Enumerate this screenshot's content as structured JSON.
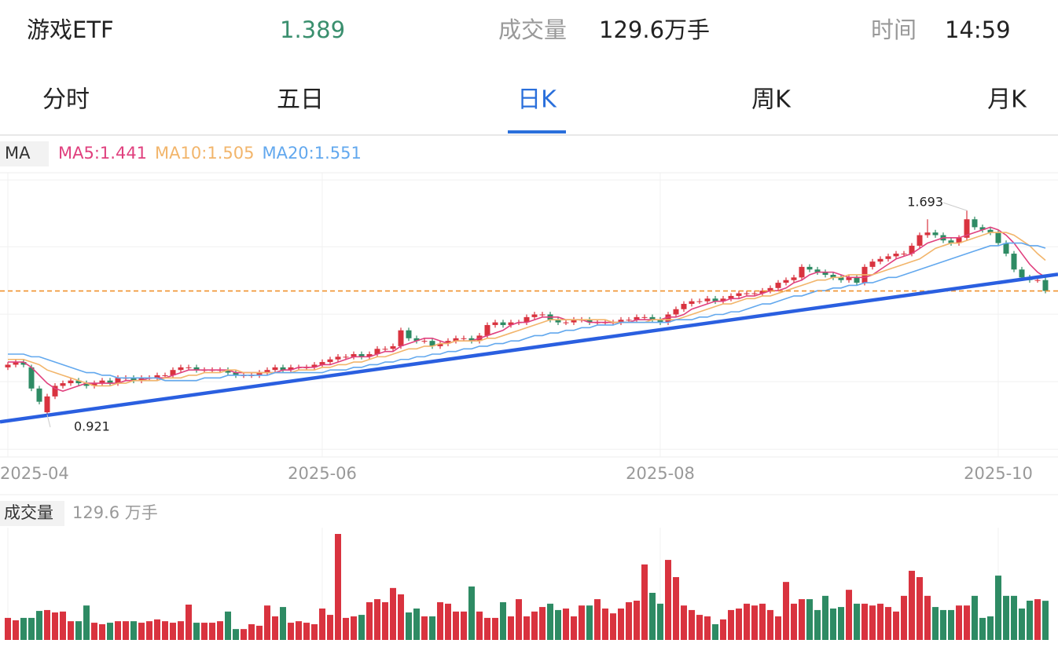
{
  "header": {
    "name": "游戏ETF",
    "price": "1.389",
    "volume_label": "成交量",
    "volume": "129.6万手",
    "time_label": "时间",
    "time": "14:59"
  },
  "tabs": [
    "分时",
    "五日",
    "日K",
    "周K",
    "月K"
  ],
  "selected_tab": 2,
  "chart_data": {
    "type": "candlestick",
    "categories": [
      "2025-04",
      null,
      null,
      null,
      null,
      null,
      null,
      null,
      null,
      null,
      null,
      null,
      null,
      null,
      null,
      null,
      null,
      null,
      null,
      null,
      null,
      null,
      null,
      null,
      null,
      null,
      null,
      null,
      null,
      null,
      null,
      null,
      null,
      null,
      null,
      null,
      null,
      null,
      null,
      null,
      "2025-06",
      null,
      null,
      null,
      null,
      null,
      null,
      null,
      null,
      null,
      null,
      null,
      null,
      null,
      null,
      null,
      null,
      null,
      null,
      null,
      null,
      null,
      null,
      null,
      null,
      null,
      null,
      null,
      null,
      null,
      null,
      null,
      null,
      null,
      null,
      null,
      null,
      null,
      null,
      null,
      null,
      null,
      null,
      "2025-08",
      null,
      null,
      null,
      null,
      null,
      null,
      null,
      null,
      null,
      null,
      null,
      null,
      null,
      null,
      null,
      null,
      null,
      null,
      null,
      null,
      null,
      null,
      null,
      null,
      null,
      null,
      null,
      null,
      null,
      null,
      null,
      null,
      null,
      null,
      null,
      null,
      null,
      null,
      null,
      null,
      null,
      null,
      "2025-10",
      null,
      null,
      null,
      null,
      null,
      null
    ],
    "open": [
      1.1,
      1.11,
      1.12,
      1.1,
      1.02,
      0.93,
      0.99,
      1.03,
      1.04,
      1.05,
      1.04,
      1.03,
      1.04,
      1.05,
      1.04,
      1.06,
      1.06,
      1.05,
      1.06,
      1.06,
      1.07,
      1.07,
      1.09,
      1.1,
      1.1,
      1.09,
      1.09,
      1.09,
      1.09,
      1.08,
      1.07,
      1.07,
      1.07,
      1.08,
      1.09,
      1.1,
      1.09,
      1.1,
      1.1,
      1.1,
      1.11,
      1.12,
      1.13,
      1.14,
      1.14,
      1.15,
      1.14,
      1.15,
      1.17,
      1.17,
      1.18,
      1.24,
      1.21,
      1.2,
      1.2,
      1.18,
      1.19,
      1.2,
      1.21,
      1.21,
      1.2,
      1.22,
      1.26,
      1.27,
      1.26,
      1.27,
      1.27,
      1.29,
      1.3,
      1.3,
      1.28,
      1.27,
      1.27,
      1.28,
      1.28,
      1.27,
      1.27,
      1.27,
      1.27,
      1.28,
      1.28,
      1.29,
      1.29,
      1.28,
      1.27,
      1.3,
      1.32,
      1.34,
      1.35,
      1.35,
      1.36,
      1.35,
      1.36,
      1.37,
      1.38,
      1.38,
      1.38,
      1.39,
      1.4,
      1.42,
      1.43,
      1.44,
      1.48,
      1.47,
      1.46,
      1.45,
      1.44,
      1.43,
      1.44,
      1.42,
      1.48,
      1.5,
      1.51,
      1.52,
      1.53,
      1.53,
      1.56,
      1.6,
      1.61,
      1.6,
      1.58,
      1.57,
      1.59,
      1.66,
      1.63,
      1.62,
      1.61,
      1.57,
      1.53,
      1.47,
      1.44,
      1.43,
      1.43
    ],
    "high": [
      1.12,
      1.13,
      1.13,
      1.11,
      1.03,
      1.0,
      1.04,
      1.05,
      1.06,
      1.06,
      1.05,
      1.05,
      1.06,
      1.06,
      1.07,
      1.07,
      1.07,
      1.07,
      1.07,
      1.08,
      1.08,
      1.1,
      1.11,
      1.11,
      1.11,
      1.1,
      1.1,
      1.1,
      1.1,
      1.09,
      1.08,
      1.08,
      1.09,
      1.1,
      1.11,
      1.11,
      1.11,
      1.11,
      1.11,
      1.12,
      1.13,
      1.14,
      1.15,
      1.15,
      1.16,
      1.16,
      1.16,
      1.18,
      1.18,
      1.19,
      1.25,
      1.25,
      1.22,
      1.21,
      1.21,
      1.2,
      1.21,
      1.22,
      1.22,
      1.22,
      1.23,
      1.27,
      1.28,
      1.28,
      1.28,
      1.28,
      1.3,
      1.31,
      1.31,
      1.31,
      1.29,
      1.28,
      1.29,
      1.29,
      1.29,
      1.28,
      1.28,
      1.28,
      1.29,
      1.29,
      1.3,
      1.3,
      1.3,
      1.29,
      1.31,
      1.33,
      1.35,
      1.36,
      1.36,
      1.37,
      1.37,
      1.37,
      1.38,
      1.39,
      1.39,
      1.39,
      1.4,
      1.41,
      1.43,
      1.44,
      1.45,
      1.49,
      1.49,
      1.48,
      1.47,
      1.46,
      1.45,
      1.45,
      1.45,
      1.49,
      1.51,
      1.52,
      1.53,
      1.54,
      1.54,
      1.57,
      1.61,
      1.66,
      1.62,
      1.61,
      1.59,
      1.6,
      1.693,
      1.67,
      1.64,
      1.63,
      1.62,
      1.58,
      1.54,
      1.48,
      1.45,
      1.44,
      1.44
    ],
    "low": [
      1.09,
      1.1,
      1.1,
      1.01,
      0.96,
      0.921,
      0.98,
      1.02,
      1.03,
      1.03,
      1.02,
      1.02,
      1.03,
      1.03,
      1.03,
      1.05,
      1.04,
      1.04,
      1.05,
      1.05,
      1.06,
      1.06,
      1.08,
      1.09,
      1.08,
      1.08,
      1.08,
      1.08,
      1.07,
      1.06,
      1.06,
      1.06,
      1.06,
      1.07,
      1.08,
      1.08,
      1.08,
      1.09,
      1.09,
      1.09,
      1.1,
      1.11,
      1.12,
      1.13,
      1.13,
      1.13,
      1.13,
      1.14,
      1.16,
      1.16,
      1.17,
      1.2,
      1.19,
      1.19,
      1.17,
      1.17,
      1.18,
      1.19,
      1.2,
      1.19,
      1.19,
      1.21,
      1.25,
      1.25,
      1.25,
      1.26,
      1.26,
      1.28,
      1.29,
      1.27,
      1.26,
      1.26,
      1.26,
      1.27,
      1.26,
      1.26,
      1.26,
      1.26,
      1.26,
      1.27,
      1.27,
      1.28,
      1.27,
      1.26,
      1.26,
      1.29,
      1.31,
      1.33,
      1.34,
      1.34,
      1.34,
      1.34,
      1.35,
      1.36,
      1.37,
      1.37,
      1.37,
      1.38,
      1.39,
      1.41,
      1.42,
      1.43,
      1.46,
      1.45,
      1.44,
      1.43,
      1.42,
      1.42,
      1.41,
      1.41,
      1.47,
      1.49,
      1.5,
      1.51,
      1.52,
      1.52,
      1.55,
      1.59,
      1.59,
      1.57,
      1.56,
      1.56,
      1.58,
      1.62,
      1.61,
      1.6,
      1.56,
      1.52,
      1.46,
      1.43,
      1.42,
      1.42,
      1.38
    ],
    "close": [
      1.11,
      1.12,
      1.11,
      1.02,
      0.97,
      0.99,
      1.03,
      1.04,
      1.05,
      1.04,
      1.03,
      1.04,
      1.05,
      1.04,
      1.06,
      1.06,
      1.05,
      1.06,
      1.06,
      1.07,
      1.07,
      1.09,
      1.1,
      1.1,
      1.09,
      1.09,
      1.09,
      1.09,
      1.08,
      1.07,
      1.07,
      1.07,
      1.08,
      1.09,
      1.1,
      1.09,
      1.1,
      1.1,
      1.1,
      1.11,
      1.12,
      1.13,
      1.14,
      1.14,
      1.15,
      1.14,
      1.15,
      1.17,
      1.17,
      1.18,
      1.24,
      1.21,
      1.2,
      1.2,
      1.18,
      1.19,
      1.2,
      1.21,
      1.21,
      1.2,
      1.22,
      1.26,
      1.27,
      1.26,
      1.27,
      1.27,
      1.29,
      1.3,
      1.3,
      1.28,
      1.27,
      1.27,
      1.28,
      1.28,
      1.27,
      1.27,
      1.27,
      1.27,
      1.28,
      1.28,
      1.29,
      1.29,
      1.28,
      1.27,
      1.3,
      1.32,
      1.34,
      1.35,
      1.35,
      1.36,
      1.35,
      1.36,
      1.37,
      1.38,
      1.38,
      1.38,
      1.39,
      1.4,
      1.42,
      1.43,
      1.44,
      1.48,
      1.47,
      1.46,
      1.45,
      1.44,
      1.43,
      1.44,
      1.42,
      1.48,
      1.5,
      1.51,
      1.52,
      1.53,
      1.53,
      1.56,
      1.6,
      1.61,
      1.6,
      1.58,
      1.57,
      1.59,
      1.66,
      1.63,
      1.62,
      1.61,
      1.57,
      1.53,
      1.47,
      1.44,
      1.43,
      1.43,
      1.389
    ],
    "volume": [
      73,
      65,
      73,
      73,
      96,
      99,
      91,
      94,
      62,
      62,
      114,
      57,
      52,
      57,
      62,
      62,
      62,
      57,
      62,
      68,
      62,
      57,
      62,
      117,
      57,
      57,
      57,
      62,
      94,
      36,
      36,
      52,
      47,
      114,
      78,
      109,
      57,
      62,
      57,
      52,
      104,
      83,
      351,
      73,
      78,
      83,
      125,
      135,
      125,
      172,
      151,
      91,
      104,
      78,
      78,
      125,
      120,
      94,
      94,
      177,
      94,
      73,
      73,
      125,
      78,
      135,
      78,
      94,
      109,
      120,
      99,
      104,
      78,
      114,
      114,
      135,
      104,
      88,
      104,
      125,
      130,
      250,
      156,
      120,
      265,
      208,
      114,
      99,
      83,
      78,
      52,
      68,
      99,
      104,
      120,
      114,
      120,
      99,
      78,
      192,
      120,
      135,
      135,
      99,
      146,
      104,
      109,
      166,
      120,
      120,
      114,
      120,
      109,
      94,
      146,
      229,
      208,
      146,
      109,
      99,
      99,
      114,
      114,
      146,
      73,
      78,
      213,
      146,
      146,
      104,
      130,
      135,
      129.6
    ],
    "ylim": [
      0.761,
      1.836
    ],
    "yticks": [
      0.79,
      1.046,
      1.301,
      1.556,
      1.809
    ],
    "grid": true,
    "volume_ylim": [
      0,
      351
    ],
    "up_color": "#d9333f",
    "down_color": "#2e8b64",
    "legend_title": "MA",
    "volume_title": "成交量",
    "volume_legend": "129.6 万手",
    "ma": [
      {
        "legend": "MA5:1.441",
        "color": "#e0407e",
        "values": [
          1.12,
          1.12,
          1.12,
          1.1,
          1.07,
          1.04,
          1.02,
          1.01,
          1.02,
          1.03,
          1.04,
          1.04,
          1.04,
          1.04,
          1.04,
          1.05,
          1.05,
          1.05,
          1.06,
          1.06,
          1.06,
          1.07,
          1.08,
          1.09,
          1.09,
          1.09,
          1.09,
          1.09,
          1.09,
          1.08,
          1.08,
          1.08,
          1.08,
          1.08,
          1.08,
          1.09,
          1.09,
          1.1,
          1.1,
          1.1,
          1.11,
          1.11,
          1.12,
          1.13,
          1.14,
          1.14,
          1.14,
          1.15,
          1.16,
          1.16,
          1.18,
          1.19,
          1.2,
          1.21,
          1.21,
          1.2,
          1.19,
          1.2,
          1.2,
          1.2,
          1.21,
          1.22,
          1.23,
          1.24,
          1.26,
          1.27,
          1.27,
          1.28,
          1.29,
          1.29,
          1.29,
          1.28,
          1.28,
          1.28,
          1.27,
          1.27,
          1.27,
          1.27,
          1.27,
          1.27,
          1.28,
          1.28,
          1.28,
          1.28,
          1.29,
          1.29,
          1.3,
          1.32,
          1.33,
          1.34,
          1.35,
          1.35,
          1.36,
          1.36,
          1.37,
          1.37,
          1.38,
          1.39,
          1.39,
          1.4,
          1.42,
          1.43,
          1.45,
          1.46,
          1.46,
          1.46,
          1.45,
          1.44,
          1.44,
          1.44,
          1.45,
          1.47,
          1.49,
          1.51,
          1.52,
          1.53,
          1.55,
          1.57,
          1.58,
          1.59,
          1.59,
          1.59,
          1.6,
          1.61,
          1.62,
          1.63,
          1.62,
          1.6,
          1.57,
          1.53,
          1.49,
          1.46,
          1.441
        ]
      },
      {
        "legend": "MA10:1.505",
        "color": "#f2b56b",
        "values": [
          1.13,
          1.13,
          1.13,
          1.12,
          1.11,
          1.09,
          1.08,
          1.07,
          1.06,
          1.05,
          1.04,
          1.03,
          1.03,
          1.03,
          1.04,
          1.04,
          1.05,
          1.05,
          1.05,
          1.05,
          1.06,
          1.06,
          1.06,
          1.07,
          1.07,
          1.08,
          1.08,
          1.08,
          1.09,
          1.09,
          1.08,
          1.08,
          1.08,
          1.08,
          1.08,
          1.08,
          1.08,
          1.09,
          1.09,
          1.09,
          1.1,
          1.1,
          1.11,
          1.11,
          1.12,
          1.12,
          1.13,
          1.14,
          1.14,
          1.15,
          1.16,
          1.17,
          1.17,
          1.18,
          1.18,
          1.19,
          1.19,
          1.2,
          1.2,
          1.2,
          1.2,
          1.21,
          1.21,
          1.22,
          1.23,
          1.24,
          1.25,
          1.26,
          1.27,
          1.28,
          1.28,
          1.28,
          1.28,
          1.28,
          1.28,
          1.28,
          1.28,
          1.27,
          1.27,
          1.27,
          1.27,
          1.27,
          1.28,
          1.28,
          1.28,
          1.28,
          1.29,
          1.3,
          1.31,
          1.32,
          1.33,
          1.34,
          1.34,
          1.35,
          1.36,
          1.36,
          1.37,
          1.37,
          1.38,
          1.39,
          1.4,
          1.41,
          1.42,
          1.43,
          1.43,
          1.44,
          1.44,
          1.45,
          1.45,
          1.45,
          1.45,
          1.46,
          1.47,
          1.48,
          1.49,
          1.5,
          1.51,
          1.53,
          1.55,
          1.56,
          1.57,
          1.57,
          1.58,
          1.59,
          1.6,
          1.61,
          1.61,
          1.61,
          1.6,
          1.58,
          1.56,
          1.53,
          1.505
        ]
      },
      {
        "legend": "MA20:1.551",
        "color": "#62a8ee",
        "values": [
          1.15,
          1.15,
          1.15,
          1.14,
          1.14,
          1.13,
          1.12,
          1.11,
          1.1,
          1.09,
          1.08,
          1.08,
          1.07,
          1.07,
          1.06,
          1.06,
          1.06,
          1.06,
          1.06,
          1.06,
          1.05,
          1.05,
          1.05,
          1.05,
          1.05,
          1.06,
          1.06,
          1.06,
          1.07,
          1.07,
          1.07,
          1.07,
          1.07,
          1.07,
          1.08,
          1.08,
          1.08,
          1.08,
          1.08,
          1.08,
          1.08,
          1.09,
          1.09,
          1.09,
          1.1,
          1.1,
          1.11,
          1.11,
          1.12,
          1.12,
          1.13,
          1.13,
          1.14,
          1.14,
          1.15,
          1.15,
          1.16,
          1.16,
          1.17,
          1.17,
          1.18,
          1.18,
          1.19,
          1.19,
          1.2,
          1.2,
          1.21,
          1.22,
          1.22,
          1.23,
          1.23,
          1.24,
          1.24,
          1.25,
          1.25,
          1.26,
          1.26,
          1.26,
          1.27,
          1.27,
          1.27,
          1.27,
          1.27,
          1.27,
          1.27,
          1.28,
          1.28,
          1.28,
          1.29,
          1.29,
          1.3,
          1.3,
          1.31,
          1.31,
          1.32,
          1.33,
          1.34,
          1.34,
          1.35,
          1.36,
          1.37,
          1.37,
          1.38,
          1.39,
          1.39,
          1.4,
          1.4,
          1.41,
          1.41,
          1.42,
          1.42,
          1.43,
          1.44,
          1.44,
          1.45,
          1.46,
          1.47,
          1.48,
          1.49,
          1.5,
          1.51,
          1.52,
          1.53,
          1.54,
          1.55,
          1.56,
          1.56,
          1.57,
          1.57,
          1.57,
          1.56,
          1.56,
          1.551
        ]
      }
    ],
    "trend_line": {
      "x": [
        -1,
        133.6
      ],
      "values": [
        0.894,
        1.452
      ],
      "color": "#2a5fe0"
    },
    "price_line": {
      "value": 1.389,
      "color": "#f0922e"
    },
    "annotations": [
      {
        "index": 122,
        "field": "high"
      },
      {
        "index": 5,
        "field": "low"
      }
    ]
  }
}
